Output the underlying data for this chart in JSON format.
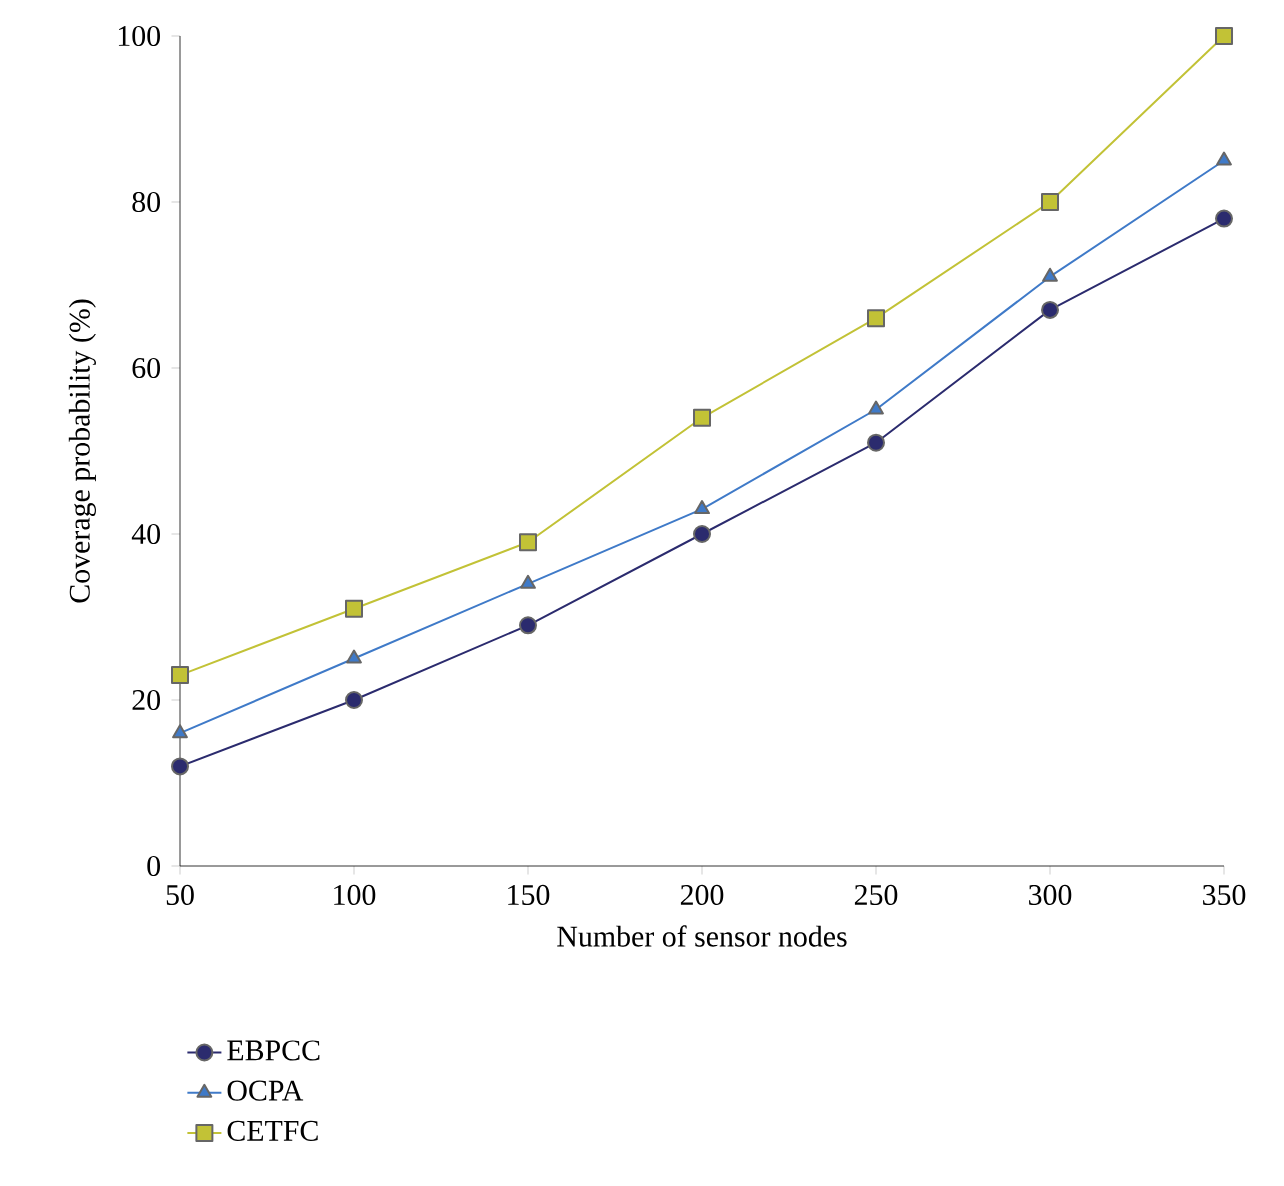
{
  "chart_data": {
    "type": "line",
    "xlabel": "Number of sensor nodes",
    "ylabel": "Coverage probability (%)",
    "x": [
      50,
      100,
      150,
      200,
      250,
      300,
      350
    ],
    "series": [
      {
        "name": "EBPCC",
        "color": "#2b2b6e",
        "marker": "circle",
        "values": [
          12,
          20,
          29,
          40,
          51,
          67,
          78
        ]
      },
      {
        "name": "OCPA",
        "color": "#3f7ac8",
        "marker": "triangle",
        "values": [
          16,
          25,
          34,
          43,
          55,
          71,
          85
        ]
      },
      {
        "name": "CETFC",
        "color": "#c2c236",
        "marker": "square",
        "values": [
          23,
          31,
          39,
          54,
          66,
          80,
          100
        ]
      }
    ],
    "xlim": [
      50,
      350
    ],
    "ylim": [
      0,
      100
    ],
    "xticks": [
      50,
      100,
      150,
      200,
      250,
      300,
      350
    ],
    "yticks": [
      0,
      20,
      40,
      60,
      80,
      100
    ],
    "grid": false,
    "legend": "bottom left",
    "line_style": "solid"
  }
}
